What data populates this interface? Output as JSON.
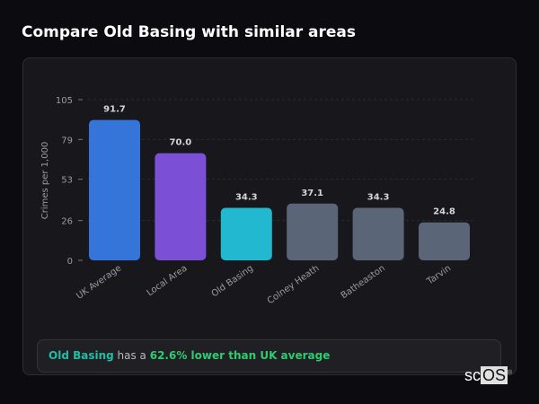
{
  "title": "Compare Old Basing with similar areas",
  "chart_data": {
    "type": "bar",
    "ylabel": "Crimes per 1,000",
    "xlabel": "",
    "ylim": [
      0,
      105
    ],
    "yticks": [
      0,
      26,
      53,
      79,
      105
    ],
    "grid": true,
    "categories": [
      "UK Average",
      "Local Area",
      "Old Basing",
      "Colney Heath",
      "Batheaston",
      "Tarvin"
    ],
    "values": [
      91.7,
      70.0,
      34.3,
      37.1,
      34.3,
      24.8
    ],
    "value_labels": [
      "91.7",
      "70.0",
      "34.3",
      "37.1",
      "34.3",
      "24.8"
    ],
    "colors": [
      "#3574d9",
      "#7b4fd6",
      "#22b8cf",
      "#5b6578",
      "#5b6578",
      "#5b6578"
    ]
  },
  "callout": {
    "area": "Old Basing",
    "middle": " has a ",
    "highlight": "62.6% lower than UK average"
  },
  "logo": {
    "sc": "sc",
    "os": "OS",
    "mark": "®"
  }
}
